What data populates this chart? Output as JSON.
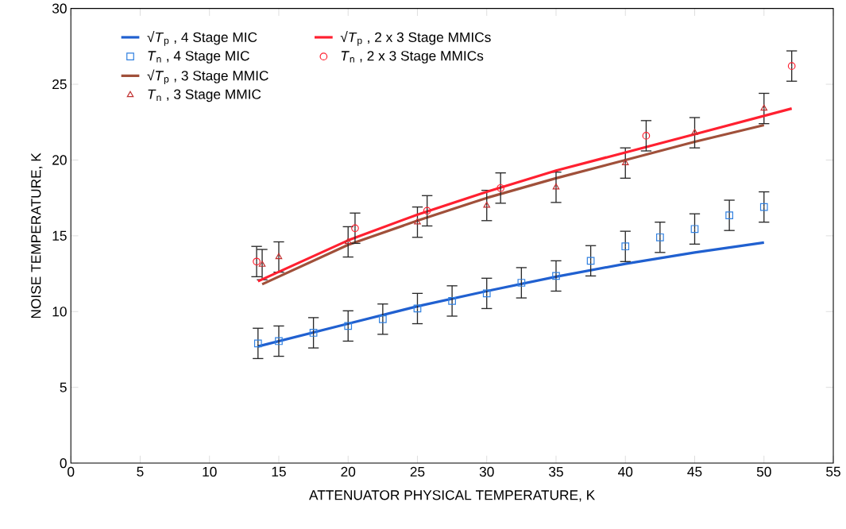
{
  "chart_data": {
    "type": "scatter",
    "xlabel": "ATTENUATOR PHYSICAL TEMPERATURE, K",
    "ylabel": "NOISE TEMPERATURE, K",
    "xlim": [
      0,
      55
    ],
    "ylim": [
      0,
      30
    ],
    "xticks": [
      0,
      5,
      10,
      15,
      20,
      25,
      30,
      35,
      40,
      45,
      50,
      55
    ],
    "yticks": [
      0,
      5,
      10,
      15,
      20,
      25,
      30
    ],
    "grid": false,
    "legend": "top left",
    "series": [
      {
        "name": "√*T*$_{p}$ , 4 Stage MIC",
        "type": "line",
        "color": "#2060d0",
        "marker": "none",
        "line_style": "solid",
        "x": [
          13.5,
          20,
          25,
          30,
          35,
          40,
          45,
          50
        ],
        "values": [
          7.7,
          9.2,
          10.35,
          11.35,
          12.3,
          13.15,
          13.9,
          14.55
        ]
      },
      {
        "name": "*T*$_{n}$ , 4 Stage MIC",
        "color": "#3080e0",
        "marker": "square",
        "x": [
          13.5,
          15,
          17.5,
          20,
          22.5,
          25,
          27.5,
          30,
          32.5,
          35,
          37.5,
          40,
          42.5,
          45,
          47.5,
          50
        ],
        "values": [
          7.9,
          8.05,
          8.6,
          9.05,
          9.5,
          10.2,
          10.7,
          11.2,
          11.9,
          12.35,
          13.35,
          14.3,
          14.9,
          15.45,
          16.35,
          16.9
        ],
        "errors": [
          1,
          1,
          1,
          1,
          1,
          1,
          1,
          1,
          1,
          1,
          1,
          1,
          1,
          1,
          1,
          1
        ]
      },
      {
        "name": "√*T*$_{p}$ , 3 Stage MMIC",
        "type": "line",
        "color": "#a0503a",
        "marker": "none",
        "line_style": "solid",
        "x": [
          13.8,
          20,
          25,
          30,
          35,
          40,
          45,
          50
        ],
        "values": [
          11.8,
          14.4,
          16.0,
          17.5,
          18.8,
          20.0,
          21.2,
          22.3
        ]
      },
      {
        "name": "*T*$_{n}$ , 3 Stage MMIC",
        "color": "#c03030",
        "marker": "triangle",
        "x": [
          13.8,
          15,
          20,
          25,
          30,
          35,
          40,
          45,
          50
        ],
        "values": [
          13.1,
          13.6,
          14.6,
          15.9,
          17.0,
          18.2,
          19.8,
          21.8,
          23.4
        ],
        "errors": [
          1,
          1,
          1,
          1,
          1,
          1,
          1,
          1,
          1
        ]
      },
      {
        "name": "√*T*$_{p}$ , 2 x 3 Stage MMICs",
        "type": "line",
        "color": "#ff2030",
        "marker": "none",
        "line_style": "solid",
        "x": [
          13.5,
          20,
          25,
          30,
          35,
          40,
          45,
          52
        ],
        "values": [
          12.0,
          14.7,
          16.4,
          17.9,
          19.3,
          20.5,
          21.7,
          23.4
        ]
      },
      {
        "name": "*T*$_{n}$ , 2 x 3 Stage MMICs",
        "color": "#ff2030",
        "marker": "circle",
        "x": [
          13.4,
          20.5,
          25.7,
          31,
          41.5,
          52
        ],
        "values": [
          13.3,
          15.5,
          16.65,
          18.15,
          21.6,
          26.2
        ],
        "errors": [
          1,
          1,
          1,
          1,
          1,
          1
        ]
      }
    ]
  }
}
